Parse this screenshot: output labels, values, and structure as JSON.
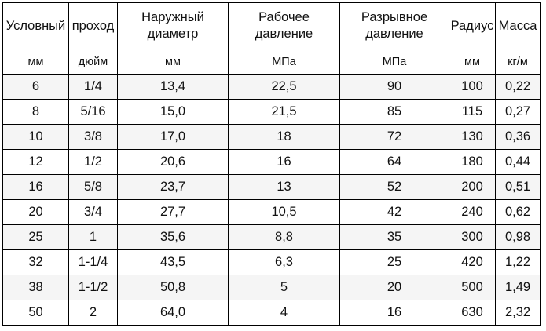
{
  "header": {
    "col1": "Условный",
    "col2": "проход",
    "col3_line1": "Наружный",
    "col3_line2": "диаметр",
    "col4_line1": "Рабочее",
    "col4_line2": "давление",
    "col5_line1": "Разрывное",
    "col5_line2": "давление",
    "col6": "Радиус",
    "col7": "Масса"
  },
  "units": [
    "мм",
    "дюйм",
    "мм",
    "МПа",
    "МПа",
    "мм",
    "кг/м"
  ],
  "rows": [
    [
      "6",
      "1/4",
      "13,4",
      "22,5",
      "90",
      "100",
      "0,22"
    ],
    [
      "8",
      "5/16",
      "15,0",
      "21,5",
      "85",
      "115",
      "0,27"
    ],
    [
      "10",
      "3/8",
      "17,0",
      "18",
      "72",
      "130",
      "0,36"
    ],
    [
      "12",
      "1/2",
      "20,6",
      "16",
      "64",
      "180",
      "0,44"
    ],
    [
      "16",
      "5/8",
      "23,7",
      "13",
      "52",
      "200",
      "0,51"
    ],
    [
      "20",
      "3/4",
      "27,7",
      "10,5",
      "42",
      "240",
      "0,62"
    ],
    [
      "25",
      "1",
      "35,6",
      "8,8",
      "35",
      "300",
      "0,98"
    ],
    [
      "32",
      "1-1/4",
      "43,5",
      "6,3",
      "25",
      "420",
      "1,22"
    ],
    [
      "38",
      "1-1/2",
      "50,8",
      "5",
      "20",
      "500",
      "1,49"
    ],
    [
      "50",
      "2",
      "64,0",
      "4",
      "16",
      "630",
      "2,32"
    ]
  ]
}
